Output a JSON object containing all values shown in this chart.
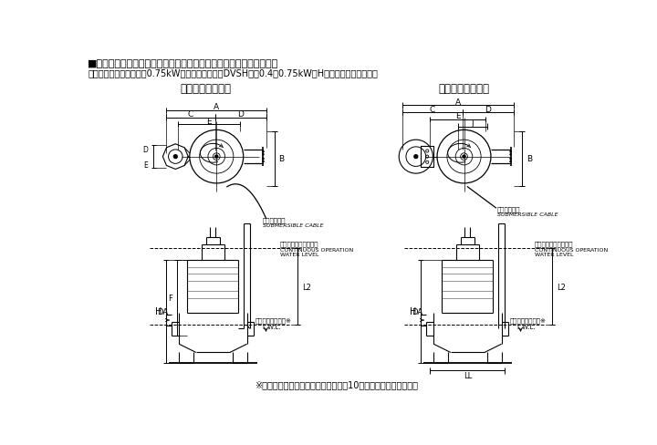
{
  "title_line1": "■外形寸法図　計画・実施に際しては納入仕様書をご請求ください。",
  "title_line2": "　非自動形（異電圧仕様0.75kW以下及び高温仕様DVSH型の0.4、0.75kWはH寸法が異なります。）",
  "label_left": "吐出し曲管一体形",
  "label_right": "吐出し曲管分割形",
  "cable_ja": "水中ケーブル",
  "cable_en": "SUBMERSIBLE CABLE",
  "cont_op_ja": "連続運転可能最低水位",
  "cont_op_en1": "CONTINUOUS OPERATION",
  "cont_op_en2": "WATER LEVEL",
  "min_op_ja": "運転可能最低水位※",
  "min_op_en": "L.W.L.",
  "footnote": "※　運転可能最低水位での運転時間は10分以内にしてください。",
  "bg": "#ffffff",
  "lc": "#000000"
}
